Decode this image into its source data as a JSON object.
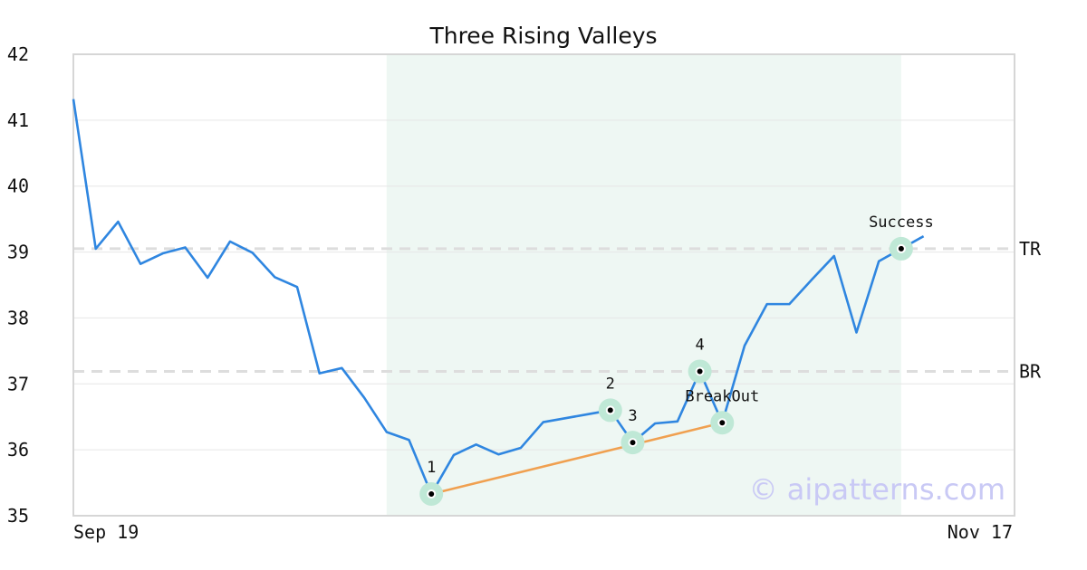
{
  "chart_data": {
    "type": "line",
    "title": "Three Rising Valleys",
    "xlabel": "",
    "ylabel": "",
    "ylim": [
      35,
      42
    ],
    "yticks": [
      "35",
      "36",
      "37",
      "38",
      "39",
      "40",
      "41",
      "42"
    ],
    "x_tick_labels": [
      "Sep 19",
      "Nov 17"
    ],
    "grid": true,
    "series": [
      {
        "color": "#2f86e0",
        "values": [
          41.32,
          39.05,
          39.46,
          38.82,
          38.98,
          39.07,
          38.61,
          39.16,
          38.99,
          38.62,
          38.47,
          37.16,
          37.24,
          36.79,
          36.27,
          36.15,
          35.33,
          35.92,
          36.08,
          35.93,
          36.03,
          36.42,
          36.48,
          36.54,
          36.6,
          36.11,
          36.4,
          36.43,
          37.19,
          36.41,
          37.58,
          38.21,
          38.21,
          38.58,
          38.94,
          37.78,
          38.86,
          39.05,
          39.24
        ]
      }
    ],
    "pattern_region": {
      "start_index": 14,
      "end_index": 37,
      "color": "#eef7f3"
    },
    "reference_lines": [
      {
        "label": "TR",
        "value": 39.05
      },
      {
        "label": "BR",
        "value": 37.19
      }
    ],
    "support_line": {
      "from_index": 16,
      "to_index": 29,
      "color": "#f0a050"
    },
    "annotations": [
      {
        "label": "1",
        "index": 16
      },
      {
        "label": "2",
        "index": 24
      },
      {
        "label": "3",
        "index": 25
      },
      {
        "label": "4",
        "index": 28
      },
      {
        "label": "BreakOut",
        "index": 29
      },
      {
        "label": "Success",
        "index": 37
      }
    ]
  },
  "watermark": "© aipatterns.com",
  "colors": {
    "line": "#2f86e0",
    "marker_halo": "#bfe8d6",
    "grid": "#e6e6e6",
    "reference": "#dddddd",
    "frame": "#d6d6d6"
  }
}
